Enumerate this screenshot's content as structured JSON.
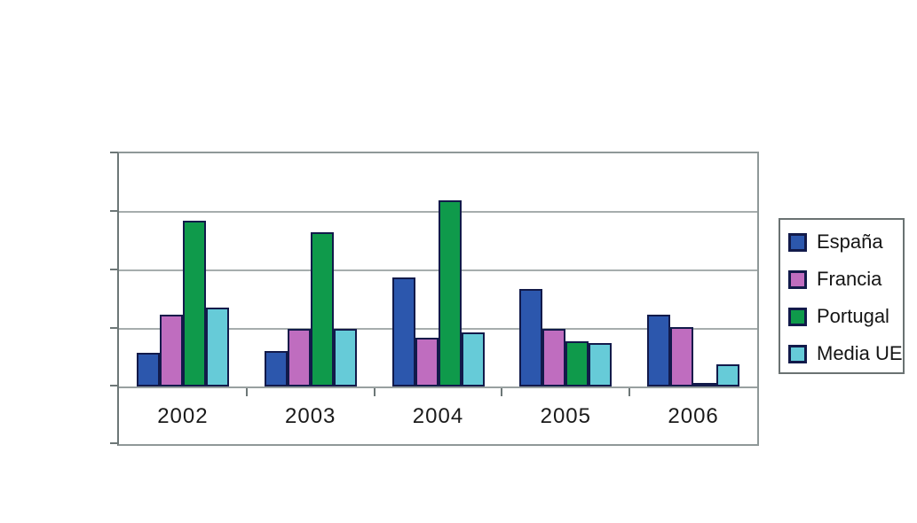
{
  "chart_data": {
    "type": "bar",
    "title": "",
    "categories": [
      "2002",
      "2003",
      "2004",
      "2005",
      "2006"
    ],
    "series": [
      {
        "name": "España",
        "color": "#2c57ad",
        "values": [
          0.57,
          0.61,
          1.87,
          1.67,
          1.22
        ]
      },
      {
        "name": "Francia",
        "color": "#bf6dbf",
        "values": [
          1.22,
          0.98,
          0.84,
          0.98,
          1.02
        ]
      },
      {
        "name": "Portugal",
        "color": "#0f9a4b",
        "values": [
          2.84,
          2.64,
          3.18,
          0.77,
          0.06
        ]
      },
      {
        "name": "Media UE",
        "color": "#66cbd8",
        "values": [
          1.35,
          0.98,
          0.93,
          0.74,
          0.38
        ]
      }
    ],
    "xlabel": "",
    "ylabel": "",
    "ylim": [
      0,
      4
    ],
    "gridline_step": 1,
    "grid": "horizontal",
    "y_tick_labels_visible": false,
    "legend_position": "right",
    "legend_border": true,
    "bar_border_color": "#121a4a",
    "frame_color": "#8f9898",
    "gridline_color": "#a6adad",
    "axis_color": "#6d7777",
    "label_text_color": "#1a1a1a",
    "background_color": "#ffffff"
  }
}
